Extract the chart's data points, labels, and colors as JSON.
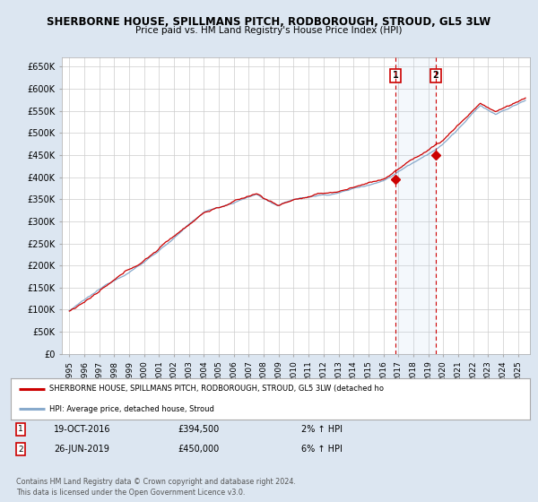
{
  "title": "SHERBORNE HOUSE, SPILLMANS PITCH, RODBOROUGH, STROUD, GL5 3LW",
  "subtitle": "Price paid vs. HM Land Registry's House Price Index (HPI)",
  "ylim": [
    0,
    670000
  ],
  "yticks": [
    0,
    50000,
    100000,
    150000,
    200000,
    250000,
    300000,
    350000,
    400000,
    450000,
    500000,
    550000,
    600000,
    650000
  ],
  "ytick_labels": [
    "£0",
    "£50K",
    "£100K",
    "£150K",
    "£200K",
    "£250K",
    "£300K",
    "£350K",
    "£400K",
    "£450K",
    "£500K",
    "£550K",
    "£600K",
    "£650K"
  ],
  "line1_color": "#cc0000",
  "line2_color": "#88aacc",
  "background_color": "#dce6f1",
  "plot_bg_color": "#ffffff",
  "transaction1": {
    "label": "1",
    "date": "19-OCT-2016",
    "price": 394500,
    "pct": "2%",
    "direction": "↑"
  },
  "transaction2": {
    "label": "2",
    "date": "26-JUN-2019",
    "price": 450000,
    "pct": "6%",
    "direction": "↑"
  },
  "legend1_text": "SHERBORNE HOUSE, SPILLMANS PITCH, RODBOROUGH, STROUD, GL5 3LW (detached ho",
  "legend2_text": "HPI: Average price, detached house, Stroud",
  "footer": "Contains HM Land Registry data © Crown copyright and database right 2024.\nThis data is licensed under the Open Government Licence v3.0.",
  "vline1_x": 2016.8,
  "vline2_x": 2019.5,
  "marker1_y": 394500,
  "marker2_y": 450000,
  "xlim_left": 1994.5,
  "xlim_right": 2025.8
}
